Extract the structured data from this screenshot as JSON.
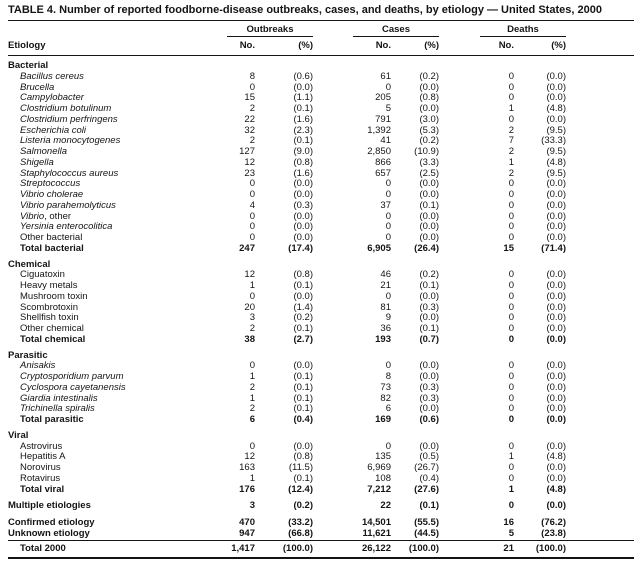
{
  "title": "TABLE 4. Number of reported foodborne-disease outbreaks, cases, and deaths, by etiology — United States, 2000",
  "columns": {
    "etiology": "Etiology",
    "no": "No.",
    "pct": "(%)",
    "groups": [
      "Outbreaks",
      "Cases",
      "Deaths"
    ]
  },
  "sections": [
    {
      "header": "Bacterial",
      "rows": [
        {
          "name": "Bacillus cereus",
          "italic": true,
          "values": [
            "8",
            "(0.6)",
            "61",
            "(0.2)",
            "0",
            "(0.0)"
          ]
        },
        {
          "name": "Brucella",
          "italic": true,
          "values": [
            "0",
            "(0.0)",
            "0",
            "(0.0)",
            "0",
            "(0.0)"
          ]
        },
        {
          "name": "Campylobacter",
          "italic": true,
          "values": [
            "15",
            "(1.1)",
            "205",
            "(0.8)",
            "0",
            "(0.0)"
          ]
        },
        {
          "name": "Clostridium botulinum",
          "italic": true,
          "values": [
            "2",
            "(0.1)",
            "5",
            "(0.0)",
            "1",
            "(4.8)"
          ]
        },
        {
          "name": "Clostridium perfringens",
          "italic": true,
          "values": [
            "22",
            "(1.6)",
            "791",
            "(3.0)",
            "0",
            "(0.0)"
          ]
        },
        {
          "name": "Escherichia coli",
          "italic": true,
          "values": [
            "32",
            "(2.3)",
            "1,392",
            "(5.3)",
            "2",
            "(9.5)"
          ]
        },
        {
          "name": "Listeria monocytogenes",
          "italic": true,
          "values": [
            "2",
            "(0.1)",
            "41",
            "(0.2)",
            "7",
            "(33.3)"
          ]
        },
        {
          "name": "Salmonella",
          "italic": true,
          "values": [
            "127",
            "(9.0)",
            "2,850",
            "(10.9)",
            "2",
            "(9.5)"
          ]
        },
        {
          "name": "Shigella",
          "italic": true,
          "values": [
            "12",
            "(0.8)",
            "866",
            "(3.3)",
            "1",
            "(4.8)"
          ]
        },
        {
          "name": "Staphylococcus aureus",
          "italic": true,
          "values": [
            "23",
            "(1.6)",
            "657",
            "(2.5)",
            "2",
            "(9.5)"
          ]
        },
        {
          "name": "Streptococcus",
          "italic": true,
          "values": [
            "0",
            "(0.0)",
            "0",
            "(0.0)",
            "0",
            "(0.0)"
          ]
        },
        {
          "name": "Vibrio cholerae",
          "italic": true,
          "values": [
            "0",
            "(0.0)",
            "0",
            "(0.0)",
            "0",
            "(0.0)"
          ]
        },
        {
          "name": "Vibrio parahemolyticus",
          "italic": true,
          "values": [
            "4",
            "(0.3)",
            "37",
            "(0.1)",
            "0",
            "(0.0)"
          ]
        },
        {
          "name": "Vibrio",
          "suffix": ", other",
          "italic": true,
          "values": [
            "0",
            "(0.0)",
            "0",
            "(0.0)",
            "0",
            "(0.0)"
          ]
        },
        {
          "name": "Yersinia enterocolitica",
          "italic": true,
          "values": [
            "0",
            "(0.0)",
            "0",
            "(0.0)",
            "0",
            "(0.0)"
          ]
        },
        {
          "name": "Other bacterial",
          "italic": false,
          "values": [
            "0",
            "(0.0)",
            "0",
            "(0.0)",
            "0",
            "(0.0)"
          ]
        }
      ],
      "total": {
        "name": "Total bacterial",
        "values": [
          "247",
          "(17.4)",
          "6,905",
          "(26.4)",
          "15",
          "(71.4)"
        ]
      }
    },
    {
      "header": "Chemical",
      "rows": [
        {
          "name": "Ciguatoxin",
          "italic": false,
          "values": [
            "12",
            "(0.8)",
            "46",
            "(0.2)",
            "0",
            "(0.0)"
          ]
        },
        {
          "name": "Heavy metals",
          "italic": false,
          "values": [
            "1",
            "(0.1)",
            "21",
            "(0.1)",
            "0",
            "(0.0)"
          ]
        },
        {
          "name": "Mushroom toxin",
          "italic": false,
          "values": [
            "0",
            "(0.0)",
            "0",
            "(0.0)",
            "0",
            "(0.0)"
          ]
        },
        {
          "name": "Scombrotoxin",
          "italic": false,
          "values": [
            "20",
            "(1.4)",
            "81",
            "(0.3)",
            "0",
            "(0.0)"
          ]
        },
        {
          "name": "Shellfish toxin",
          "italic": false,
          "values": [
            "3",
            "(0.2)",
            "9",
            "(0.0)",
            "0",
            "(0.0)"
          ]
        },
        {
          "name": "Other chemical",
          "italic": false,
          "values": [
            "2",
            "(0.1)",
            "36",
            "(0.1)",
            "0",
            "(0.0)"
          ]
        }
      ],
      "total": {
        "name": "Total chemical",
        "values": [
          "38",
          "(2.7)",
          "193",
          "(0.7)",
          "0",
          "(0.0)"
        ]
      }
    },
    {
      "header": "Parasitic",
      "rows": [
        {
          "name": "Anisakis",
          "italic": true,
          "values": [
            "0",
            "(0.0)",
            "0",
            "(0.0)",
            "0",
            "(0.0)"
          ]
        },
        {
          "name": "Cryptosporidium parvum",
          "italic": true,
          "values": [
            "1",
            "(0.1)",
            "8",
            "(0.0)",
            "0",
            "(0.0)"
          ]
        },
        {
          "name": "Cyclospora cayetanensis",
          "italic": true,
          "values": [
            "2",
            "(0.1)",
            "73",
            "(0.3)",
            "0",
            "(0.0)"
          ]
        },
        {
          "name": "Giardia intestinalis",
          "italic": true,
          "values": [
            "1",
            "(0.1)",
            "82",
            "(0.3)",
            "0",
            "(0.0)"
          ]
        },
        {
          "name": "Trichinella spiralis",
          "italic": true,
          "values": [
            "2",
            "(0.1)",
            "6",
            "(0.0)",
            "0",
            "(0.0)"
          ]
        }
      ],
      "total": {
        "name": "Total parasitic",
        "values": [
          "6",
          "(0.4)",
          "169",
          "(0.6)",
          "0",
          "(0.0)"
        ]
      }
    },
    {
      "header": "Viral",
      "rows": [
        {
          "name": "Astrovirus",
          "italic": false,
          "values": [
            "0",
            "(0.0)",
            "0",
            "(0.0)",
            "0",
            "(0.0)"
          ]
        },
        {
          "name": "Hepatitis A",
          "italic": false,
          "values": [
            "12",
            "(0.8)",
            "135",
            "(0.5)",
            "1",
            "(4.8)"
          ]
        },
        {
          "name": "Norovirus",
          "italic": false,
          "values": [
            "163",
            "(11.5)",
            "6,969",
            "(26.7)",
            "0",
            "(0.0)"
          ]
        },
        {
          "name": "Rotavirus",
          "italic": false,
          "values": [
            "1",
            "(0.1)",
            "108",
            "(0.4)",
            "0",
            "(0.0)"
          ]
        }
      ],
      "total": {
        "name": "Total viral",
        "values": [
          "176",
          "(12.4)",
          "7,212",
          "(27.6)",
          "1",
          "(4.8)"
        ]
      }
    }
  ],
  "summary_rows": [
    {
      "name": "Multiple etiologies",
      "values": [
        "3",
        "(0.2)",
        "22",
        "(0.1)",
        "0",
        "(0.0)"
      ]
    },
    {
      "name": "Confirmed etiology",
      "values": [
        "470",
        "(33.2)",
        "14,501",
        "(55.5)",
        "16",
        "(76.2)"
      ]
    },
    {
      "name": "Unknown etiology",
      "values": [
        "947",
        "(66.8)",
        "11,621",
        "(44.5)",
        "5",
        "(23.8)"
      ]
    }
  ],
  "grand_total": {
    "name": "Total 2000",
    "values": [
      "1,417",
      "(100.0)",
      "26,122",
      "(100.0)",
      "21",
      "(100.0)"
    ]
  }
}
